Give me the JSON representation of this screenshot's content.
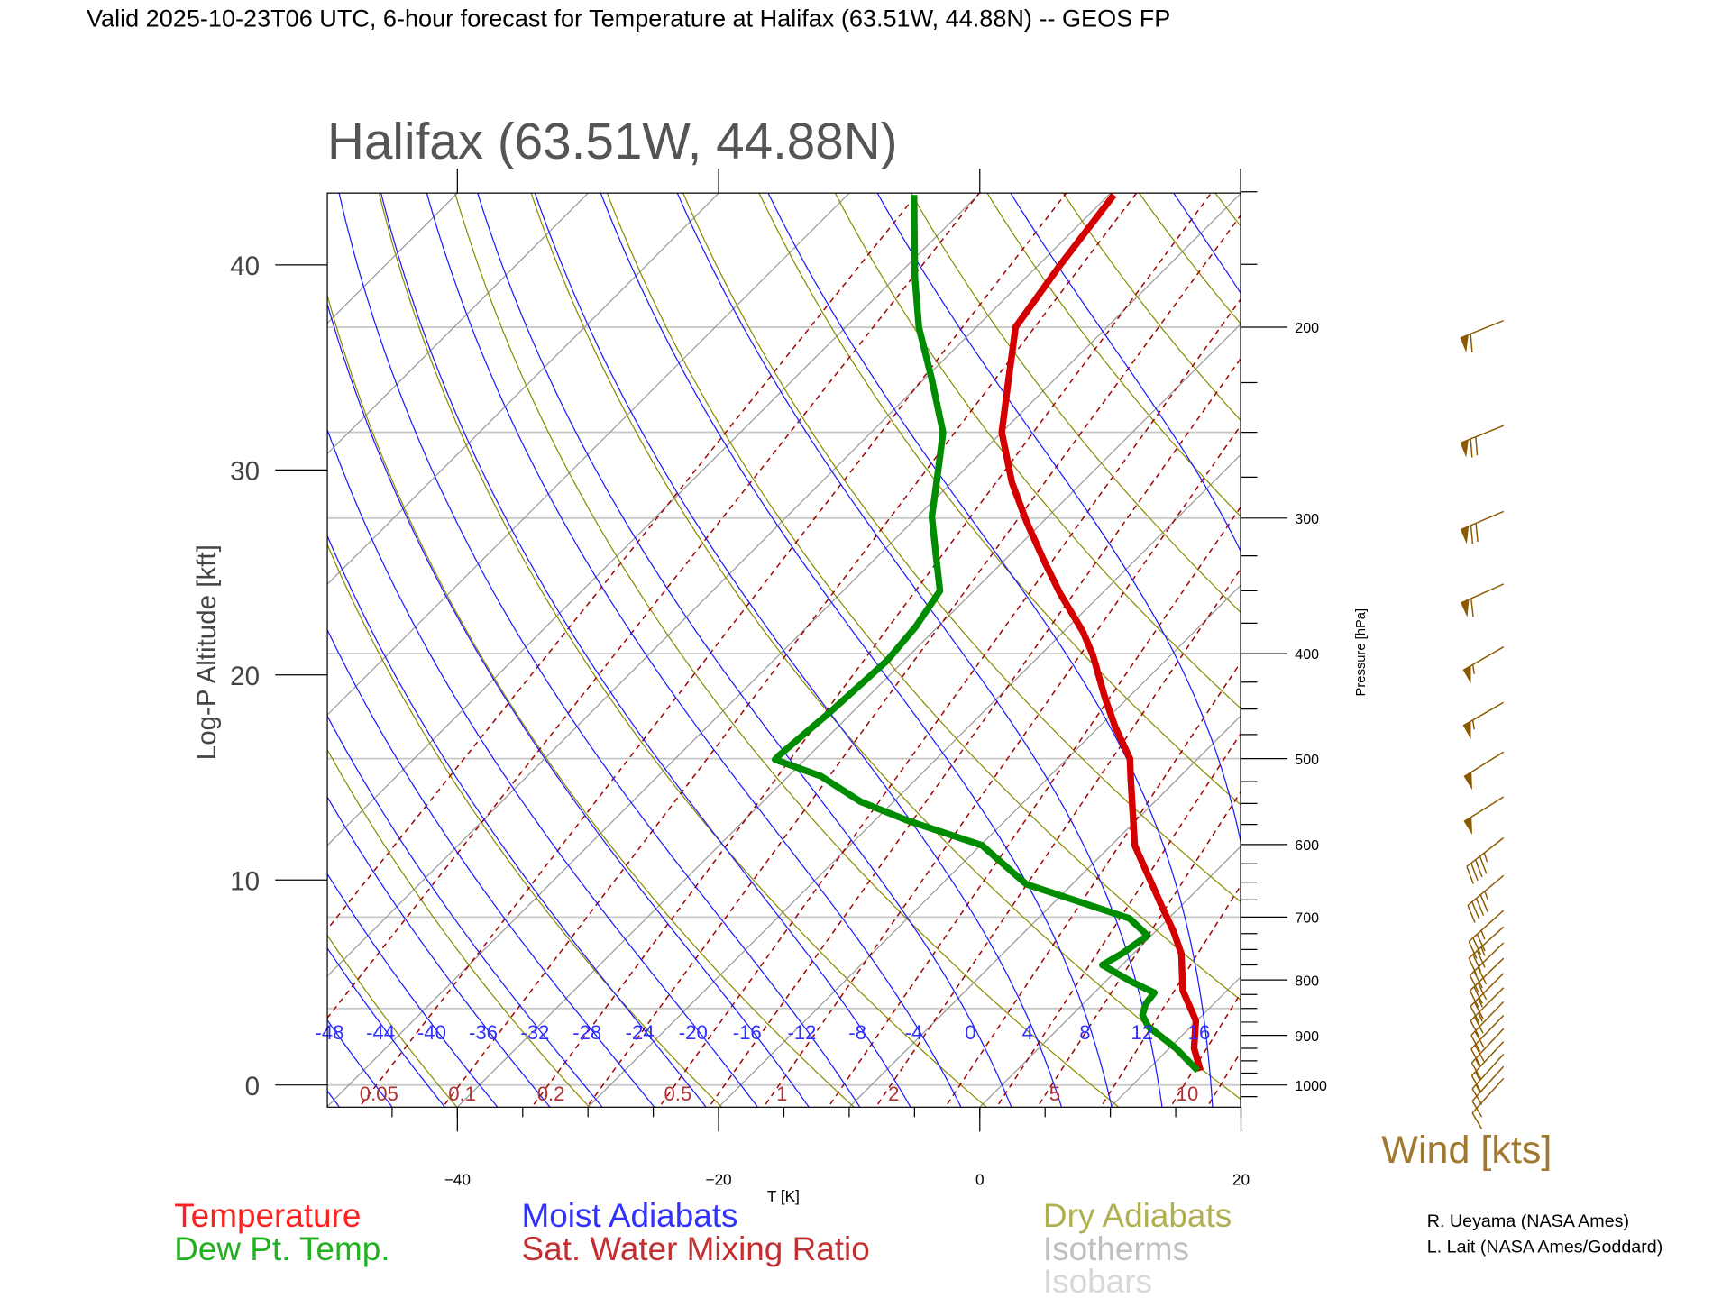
{
  "header": {
    "title": "Valid 2025-10-23T06 UTC, 6-hour forecast for Temperature at Halifax (63.51W, 44.88N) -- GEOS FP"
  },
  "chart_data": {
    "type": "line",
    "subtype": "skew-T log-P diagram",
    "title": "Halifax (63.51W, 44.88N)",
    "xlabel": "T [K]",
    "ylabel": "Log-P Altitude [kft]",
    "y2label": "Pressure [hPa]",
    "x_ticks": [
      "−40",
      "−20",
      "0",
      "20"
    ],
    "x_tick_values": [
      -40,
      -20,
      0,
      20
    ],
    "altitude_ticks": [
      "0",
      "10",
      "20",
      "30",
      "40"
    ],
    "altitude_tick_values": [
      0,
      10,
      20,
      30,
      40
    ],
    "pressure_ticks": [
      "1000",
      "900",
      "800",
      "700",
      "600",
      "500",
      "400",
      "300",
      "200"
    ],
    "pressure_tick_values": [
      1000,
      900,
      800,
      700,
      600,
      500,
      400,
      300,
      200
    ],
    "pressure_range_hPa": [
      1048,
      150
    ],
    "isobars_hPa": [
      1000,
      850,
      700,
      500,
      400,
      300,
      250,
      200
    ],
    "moist_adiabat_labels": [
      "-48",
      "-44",
      "-40",
      "-36",
      "-32",
      "-28",
      "-24",
      "-20",
      "-16",
      "-12",
      "-8",
      "-4",
      "0",
      "4",
      "8",
      "12",
      "16"
    ],
    "mixing_ratio_labels": [
      "0.05",
      "0.1",
      "0.2",
      "0.5",
      "1",
      "2",
      "5",
      "10"
    ],
    "series": [
      {
        "name": "Temperature",
        "color": "#d40000",
        "pressure": [
          970,
          925,
          872,
          818,
          757,
          722,
          686,
          601,
          519,
          500,
          467,
          440,
          401,
          382,
          352,
          328,
          302,
          278,
          250,
          228,
          200,
          176,
          151
        ],
        "values": [
          14.1,
          11.9,
          9.9,
          6.6,
          3.7,
          1.4,
          -1.3,
          -8.2,
          -13.8,
          -15.2,
          -18.8,
          -21.7,
          -26.0,
          -28.5,
          -33.2,
          -37.0,
          -41.3,
          -45.4,
          -50.0,
          -52.9,
          -57.0,
          -58.3,
          -59.6
        ]
      },
      {
        "name": "Dew Pt. Temp.",
        "color": "#008c00",
        "pressure": [
          970,
          925,
          883,
          862,
          842,
          822,
          803,
          775,
          757,
          728,
          702,
          653,
          601,
          571,
          548,
          519,
          501,
          496,
          451,
          406,
          378,
          350,
          324,
          299,
          275,
          250,
          222,
          200,
          180,
          151
        ],
        "values": [
          13.9,
          10.5,
          6.7,
          5.4,
          4.8,
          4.6,
          2.0,
          -1.5,
          -0.9,
          -0.3,
          -3.0,
          -13.5,
          -19.9,
          -27.3,
          -32.5,
          -37.5,
          -42.3,
          -42.3,
          -41.7,
          -41.3,
          -41.7,
          -42.6,
          -45.7,
          -48.9,
          -51.5,
          -54.5,
          -59.7,
          -64.4,
          -68.5,
          -74.9
        ]
      }
    ],
    "wind": {
      "label": "Wind [kts]",
      "color": "#8b5a00",
      "pressure": [
        200,
        250,
        300,
        350,
        400,
        450,
        500,
        550,
        600,
        650,
        700,
        725,
        750,
        775,
        800,
        825,
        850,
        875,
        900,
        925,
        950,
        975,
        1000
      ],
      "speed_kts": [
        60,
        70,
        70,
        60,
        55,
        55,
        50,
        50,
        45,
        45,
        35,
        35,
        30,
        30,
        25,
        25,
        20,
        20,
        15,
        15,
        15,
        10,
        10
      ],
      "direction_deg": [
        248,
        248,
        247,
        246,
        240,
        240,
        238,
        238,
        232,
        230,
        228,
        228,
        226,
        226,
        225,
        225,
        224,
        224,
        223,
        223,
        222,
        222,
        222
      ]
    },
    "legend": [
      {
        "label": "Temperature",
        "color": "#ff2020"
      },
      {
        "label": "Dew Pt. Temp.",
        "color": "#20b020"
      },
      {
        "label": "Moist Adiabats",
        "color": "#3030ff"
      },
      {
        "label": "Sat. Water Mixing Ratio",
        "color": "#c03030"
      },
      {
        "label": "Dry Adiabats",
        "color": "#b0b050"
      },
      {
        "label": "Isotherms",
        "color": "#c0c0c0"
      },
      {
        "label": "Isobars",
        "color": "#d8d8d8"
      }
    ]
  },
  "credits": [
    "R. Ueyama (NASA Ames)",
    "L. Lait (NASA Ames/Goddard)"
  ]
}
